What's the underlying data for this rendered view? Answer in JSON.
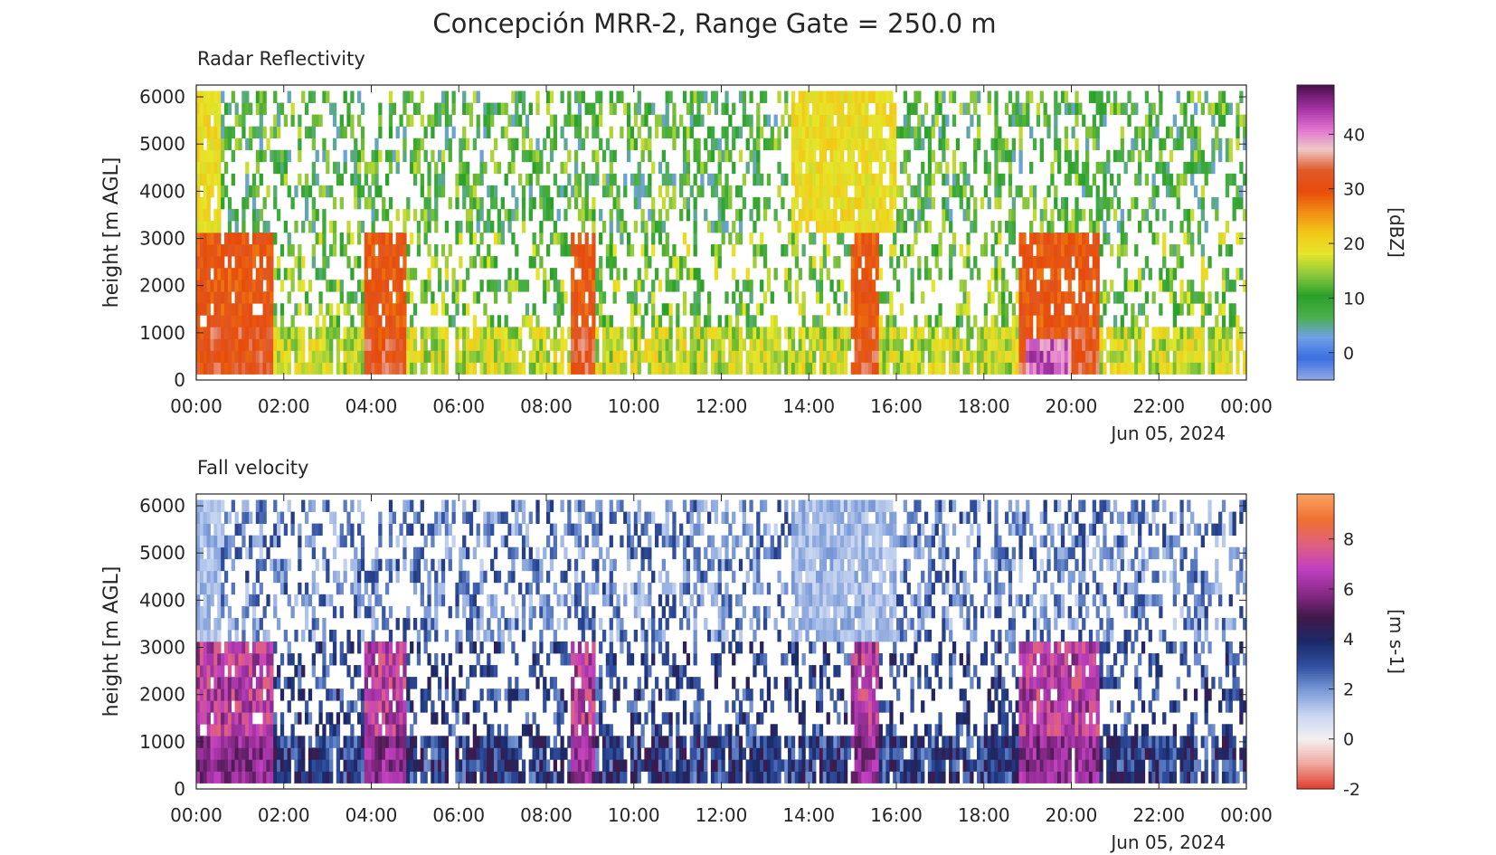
{
  "figure_title": "Concepción MRR-2, Range Gate = 250.0 m",
  "chart_data": [
    {
      "type": "heatmap",
      "title": "Radar Reflectivity",
      "ylabel": "height [m AGL]",
      "xlabel": "",
      "x_ticks": [
        "00:00",
        "02:00",
        "04:00",
        "06:00",
        "08:00",
        "10:00",
        "12:00",
        "14:00",
        "16:00",
        "18:00",
        "20:00",
        "22:00",
        "00:00"
      ],
      "date_label": "Jun 05, 2024",
      "xlim_hours": [
        0,
        24
      ],
      "ylim": [
        0,
        6250
      ],
      "y_ticks": [
        0,
        1000,
        2000,
        3000,
        4000,
        5000,
        6000
      ],
      "range_gate_m": 250,
      "colorbar_label": "[dBZ]",
      "colorbar_ticks": [
        0,
        10,
        20,
        30,
        40
      ],
      "colorbar_range": [
        -5,
        49
      ],
      "colormap": [
        "#8fa6e6",
        "#3a6fe0",
        "#6fa0e8",
        "#4ab04a",
        "#2aa02a",
        "#8cc83c",
        "#e6e62a",
        "#f2c818",
        "#f28c14",
        "#e64b0a",
        "#e05a28",
        "#f0c8c8",
        "#e070d0",
        "#a030a0",
        "#501050"
      ],
      "grid": false
    },
    {
      "type": "heatmap",
      "title": "Fall velocity",
      "ylabel": "height [m AGL]",
      "xlabel": "",
      "x_ticks": [
        "00:00",
        "02:00",
        "04:00",
        "06:00",
        "08:00",
        "10:00",
        "12:00",
        "14:00",
        "16:00",
        "18:00",
        "20:00",
        "22:00",
        "00:00"
      ],
      "date_label": "Jun 05, 2024",
      "xlim_hours": [
        0,
        24
      ],
      "ylim": [
        0,
        6250
      ],
      "y_ticks": [
        0,
        1000,
        2000,
        3000,
        4000,
        5000,
        6000
      ],
      "range_gate_m": 250,
      "colorbar_label": "[m s-1]",
      "colorbar_ticks": [
        -2,
        0,
        2,
        4,
        6,
        8
      ],
      "colorbar_range": [
        -2,
        9.8
      ],
      "colormap": [
        "#e04030",
        "#f0a8a0",
        "#f4f0f0",
        "#c8d6f0",
        "#7a9ad8",
        "#3050a0",
        "#1a2a6a",
        "#401848",
        "#8a2a8a",
        "#c040c0",
        "#e06080",
        "#f07030",
        "#f8a060"
      ],
      "grid": false
    }
  ]
}
